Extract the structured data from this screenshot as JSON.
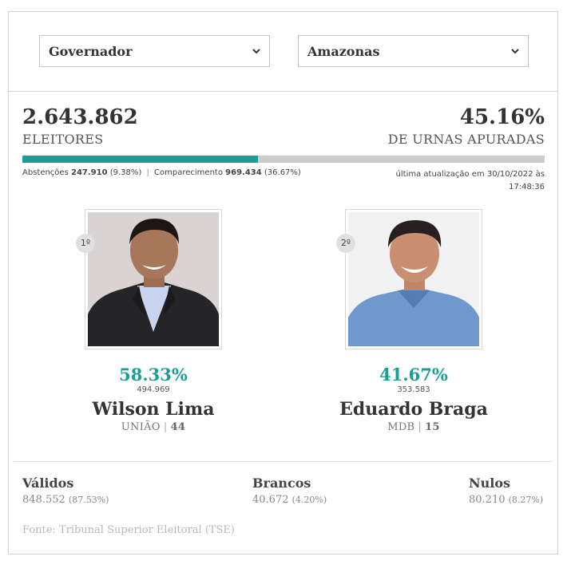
{
  "filters": {
    "office": "Governador",
    "state": "Amazonas"
  },
  "summary": {
    "voters_count": "2.643.862",
    "voters_label": "ELEITORES",
    "pct_counted": "45.16%",
    "pct_counted_label": "DE URNAS APURADAS",
    "progress_fraction": 0.4516,
    "abstencoes_label": "Abstenções",
    "abstencoes_value": "247.910",
    "abstencoes_pct": "(9.38%)",
    "separator": "|",
    "comparecimento_label": "Comparecimento",
    "comparecimento_value": "969.434",
    "comparecimento_pct": "(36.67%)",
    "updated_text": "última atualização em 30/10/2022 às",
    "updated_time": "17:48:36"
  },
  "candidates": [
    {
      "rank": "1º",
      "pct": "58.33%",
      "votes": "494.969",
      "name": "Wilson Lima",
      "party": "UNIÃO",
      "number": "44"
    },
    {
      "rank": "2º",
      "pct": "41.67%",
      "votes": "353.583",
      "name": "Eduardo Braga",
      "party": "MDB",
      "number": "15"
    }
  ],
  "totals": {
    "validos": {
      "label": "Válidos",
      "value": "848.552",
      "pct": "(87.53%)"
    },
    "brancos": {
      "label": "Brancos",
      "value": "40.672",
      "pct": "(4.20%)"
    },
    "nulos": {
      "label": "Nulos",
      "value": "80.210",
      "pct": "(8.27%)"
    }
  },
  "source": "Fonte: Tribunal Superior Eleitoral (TSE)",
  "colors": {
    "accent": "#18a097",
    "progress_track": "#cccccc"
  }
}
